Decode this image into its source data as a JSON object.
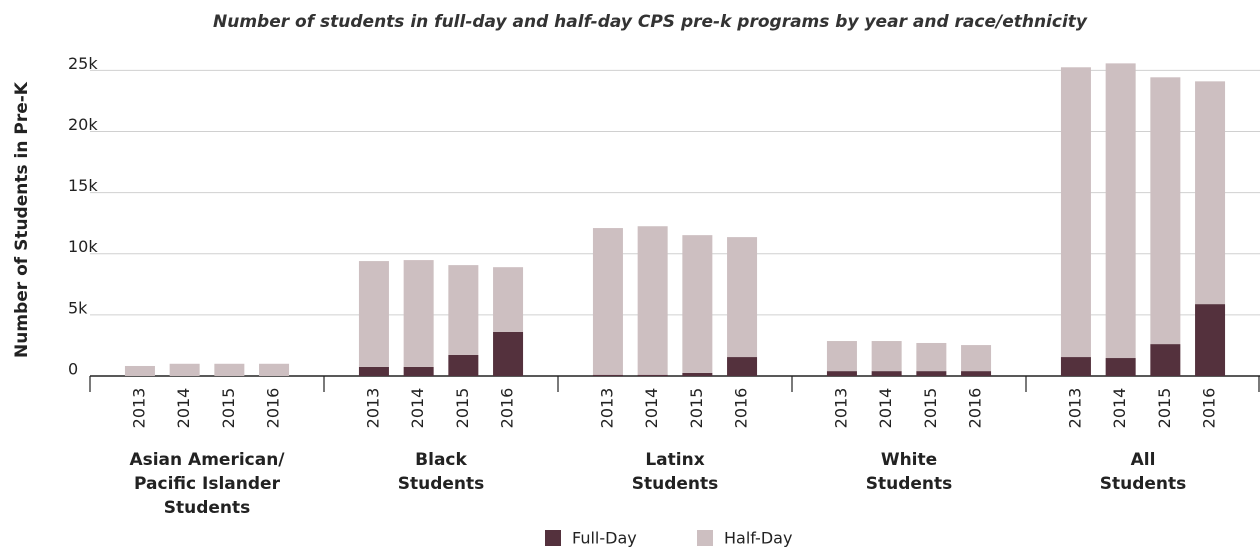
{
  "chart_data": {
    "type": "grouped-stacked-bar",
    "title": "Number of students in full-day and half-day CPS pre-k programs by year and race/ethnicity",
    "y_label": "Number of Students in Pre-K",
    "groups": [
      {
        "label": [
          "Asian American/",
          "Pacific Islander",
          "Students"
        ],
        "categories": [
          "2013",
          "2014",
          "2015",
          "2016"
        ]
      },
      {
        "label": [
          "Black",
          "Students"
        ],
        "categories": [
          "2013",
          "2014",
          "2015",
          "2016"
        ]
      },
      {
        "label": [
          "Latinx",
          "Students"
        ],
        "categories": [
          "2013",
          "2014",
          "2015",
          "2016"
        ]
      },
      {
        "label": [
          "White",
          "Students"
        ],
        "categories": [
          "2013",
          "2014",
          "2015",
          "2016"
        ]
      },
      {
        "label": [
          "All",
          "Students"
        ],
        "categories": [
          "2013",
          "2014",
          "2015",
          "2016"
        ]
      }
    ],
    "series": [
      {
        "name": "Full-Day",
        "color": "#54313d",
        "values": [
          [
            0,
            0,
            0,
            0
          ],
          [
            740,
            740,
            1720,
            3600
          ],
          [
            100,
            100,
            250,
            1550
          ],
          [
            400,
            400,
            400,
            400
          ],
          [
            1550,
            1470,
            2610,
            5880
          ]
        ]
      },
      {
        "name": "Half-Day",
        "color": "#cdbfc1",
        "values": [
          [
            820,
            1000,
            1000,
            1000
          ],
          [
            8660,
            8740,
            7350,
            5300
          ],
          [
            12000,
            12150,
            11270,
            9810
          ],
          [
            2460,
            2460,
            2300,
            2130
          ],
          [
            23700,
            24100,
            21820,
            18220
          ]
        ]
      }
    ],
    "ylim": [
      0,
      26500
    ],
    "yticks": [
      0,
      {
        "value": 5000,
        "label": "5k"
      },
      {
        "value": 10000,
        "label": "10k"
      },
      {
        "value": 15000,
        "label": "15k"
      },
      {
        "value": 20000,
        "label": "20k"
      },
      {
        "value": 25000,
        "label": "25k"
      }
    ],
    "grid": true
  }
}
